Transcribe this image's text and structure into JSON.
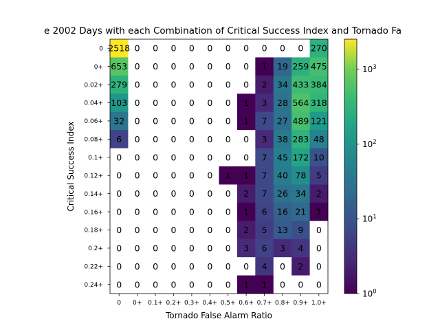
{
  "chart_data": {
    "type": "heatmap",
    "title": "e 2002 Days with each Combination of Critical Success Index and Tornado Fa",
    "xlabel": "Tornado False Alarm Ratio",
    "ylabel": "Critical Success Index",
    "x_tick_labels": [
      "0",
      "0+",
      "0.1+",
      "0.2+",
      "0.3+",
      "0.4+",
      "0.5+",
      "0.6+",
      "0.7+",
      "0.8+",
      "0.9+",
      "1.0+"
    ],
    "y_tick_labels": [
      "0",
      "0+",
      "0.02+",
      "0.04+",
      "0.06+",
      "0.08+",
      "0.1+",
      "0.12+",
      "0.14+",
      "0.16+",
      "0.18+",
      "0.2+",
      "0.22+",
      "0.24+"
    ],
    "values": [
      [
        2518,
        0,
        0,
        0,
        0,
        0,
        0,
        0,
        0,
        0,
        0,
        270
      ],
      [
        653,
        0,
        0,
        0,
        0,
        0,
        0,
        0,
        1,
        19,
        259,
        475
      ],
      [
        279,
        0,
        0,
        0,
        0,
        0,
        0,
        0,
        2,
        34,
        433,
        384
      ],
      [
        103,
        0,
        0,
        0,
        0,
        0,
        0,
        1,
        3,
        28,
        564,
        318
      ],
      [
        32,
        0,
        0,
        0,
        0,
        0,
        0,
        1,
        7,
        27,
        489,
        121
      ],
      [
        6,
        0,
        0,
        0,
        0,
        0,
        0,
        0,
        3,
        38,
        283,
        48
      ],
      [
        0,
        0,
        0,
        0,
        0,
        0,
        0,
        0,
        7,
        45,
        172,
        10
      ],
      [
        0,
        0,
        0,
        0,
        0,
        0,
        1,
        1,
        7,
        40,
        78,
        5
      ],
      [
        0,
        0,
        0,
        0,
        0,
        0,
        0,
        2,
        7,
        26,
        34,
        2
      ],
      [
        0,
        0,
        0,
        0,
        0,
        0,
        0,
        1,
        6,
        16,
        21,
        1
      ],
      [
        0,
        0,
        0,
        0,
        0,
        0,
        0,
        2,
        5,
        13,
        9,
        0
      ],
      [
        0,
        0,
        0,
        0,
        0,
        0,
        0,
        3,
        6,
        3,
        4,
        0
      ],
      [
        0,
        0,
        0,
        0,
        0,
        0,
        0,
        0,
        4,
        0,
        2,
        0
      ],
      [
        0,
        0,
        0,
        0,
        0,
        0,
        0,
        1,
        1,
        0,
        0,
        0
      ]
    ],
    "colorscale": "viridis",
    "color_scale_type": "log",
    "color_range": [
      1,
      2518
    ],
    "colorbar_ticks": [
      {
        "value": 1,
        "base": "10",
        "exp": "0"
      },
      {
        "value": 10,
        "base": "10",
        "exp": "1"
      },
      {
        "value": 100,
        "base": "10",
        "exp": "2"
      },
      {
        "value": 1000,
        "base": "10",
        "exp": "3"
      }
    ],
    "zero_cell_color": "#ffffff",
    "grid": false,
    "legend": "colorbar-right"
  }
}
